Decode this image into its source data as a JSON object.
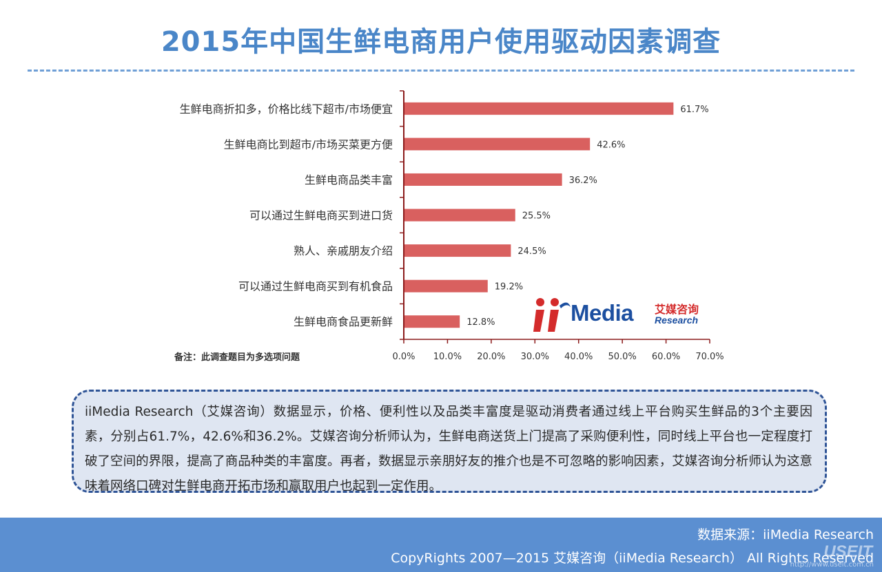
{
  "page": {
    "title": "2015年中国生鲜电商用户使用驱动因素调查",
    "note": "备注：此调查题目为多选项问题",
    "summary": "iiMedia Research（艾媒咨询）数据显示，价格、便利性以及品类丰富度是驱动消费者通过线上平台购买生鲜品的3个主要因素，分别占61.7%，42.6%和36.2%。艾媒咨询分析师认为，生鲜电商送货上门提高了采购便利性，同时线上平台也一定程度打破了空间的界限，提高了商品种类的丰富度。再者，数据显示亲朋好友的推介也是不可忽略的影响因素，艾媒咨询分析师认为这意味着网络口碑对生鲜电商开拓市场和赢取用户也起到一定作用。",
    "source": "数据来源：iiMedia Research",
    "copyright": "CopyRights 2007—2015 艾媒咨询（iiMedia Research） All Rights Reserved",
    "watermark": "USEIT",
    "watermark_url": "http://www.useit.com.cn"
  },
  "logo": {
    "wordmark": "Media",
    "cn": "艾媒咨询",
    "en": "Research"
  },
  "colors": {
    "bar": "#d9605f",
    "axis": "#8b1a1a",
    "title": "#4a86c8",
    "footer": "#5b8fd1"
  },
  "chart_data": {
    "type": "bar",
    "orientation": "horizontal",
    "categories": [
      "生鲜电商折扣多，价格比线下超市/市场便宜",
      "生鲜电商比到超市/市场买菜更方便",
      "生鲜电商品类丰富",
      "可以通过生鲜电商买到进口货",
      "熟人、亲戚朋友介绍",
      "可以通过生鲜电商买到有机食品",
      "生鲜电商食品更新鲜"
    ],
    "values": [
      61.7,
      42.6,
      36.2,
      25.5,
      24.5,
      19.2,
      12.8
    ],
    "value_labels": [
      "61.7%",
      "42.6%",
      "36.2%",
      "25.5%",
      "24.5%",
      "19.2%",
      "12.8%"
    ],
    "xlim": [
      0,
      70
    ],
    "xticks": [
      0,
      10,
      20,
      30,
      40,
      50,
      60,
      70
    ],
    "xtick_labels": [
      "0.0%",
      "10.0%",
      "20.0%",
      "30.0%",
      "40.0%",
      "50.0%",
      "60.0%",
      "70.0%"
    ],
    "grid": false,
    "legend": "none"
  }
}
